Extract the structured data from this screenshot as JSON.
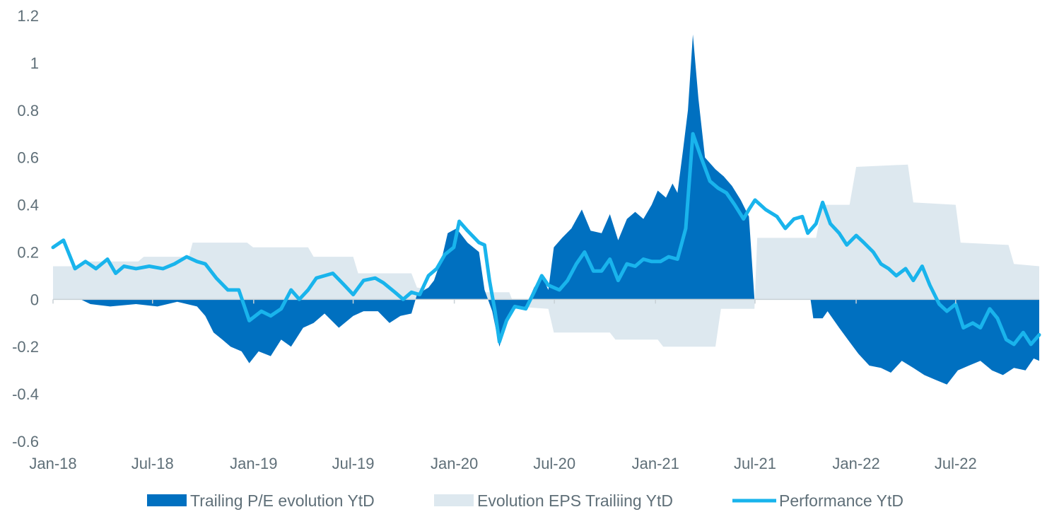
{
  "chart_data": {
    "type": "area",
    "title": "",
    "xlabel": "",
    "ylabel": "",
    "ylim": [
      -0.6,
      1.2
    ],
    "yticks": [
      "1.2",
      "1",
      "0.8",
      "0.6",
      "0.4",
      "0.2",
      "0",
      "-0.2",
      "-0.4",
      "-0.6"
    ],
    "xlim": [
      "2018-01-01",
      "2022-11-30"
    ],
    "xticks": [
      "Jan-18",
      "Jul-18",
      "Jan-19",
      "Jul-19",
      "Jan-20",
      "Jul-20",
      "Jan-21",
      "Jul-21",
      "Jan-22",
      "Jul-22"
    ],
    "grid": false,
    "legend_position": "bottom",
    "colors": {
      "pe": "#0070c0",
      "eps": "#dde8ef",
      "perf": "#19b4ec",
      "axis": "#c8d1d6",
      "text": "#5f6f78"
    },
    "series": [
      {
        "name": "Evolution EPS Trailiing YtD",
        "kind": "area",
        "points": [
          [
            "2018-01-01",
            0.14
          ],
          [
            "2018-02-20",
            0.14
          ],
          [
            "2018-03-01",
            0.16
          ],
          [
            "2018-06-05",
            0.16
          ],
          [
            "2018-06-15",
            0.18
          ],
          [
            "2018-09-05",
            0.18
          ],
          [
            "2018-09-12",
            0.24
          ],
          [
            "2018-12-20",
            0.24
          ],
          [
            "2018-12-31",
            0.22
          ],
          [
            "2019-04-10",
            0.22
          ],
          [
            "2019-04-20",
            0.18
          ],
          [
            "2019-07-01",
            0.18
          ],
          [
            "2019-07-10",
            0.11
          ],
          [
            "2019-10-15",
            0.11
          ],
          [
            "2019-10-25",
            0.05
          ],
          [
            "2019-12-31",
            0.03
          ],
          [
            "2020-01-05",
            0.03
          ],
          [
            "2020-04-10",
            0.03
          ],
          [
            "2020-04-20",
            -0.03
          ],
          [
            "2020-06-20",
            -0.04
          ],
          [
            "2020-06-30",
            -0.14
          ],
          [
            "2020-10-10",
            -0.14
          ],
          [
            "2020-10-20",
            -0.17
          ],
          [
            "2021-01-05",
            -0.17
          ],
          [
            "2021-01-15",
            -0.2
          ],
          [
            "2021-04-20",
            -0.2
          ],
          [
            "2021-04-30",
            -0.04
          ],
          [
            "2021-06-30",
            -0.04
          ],
          [
            "2021-07-05",
            0.26
          ],
          [
            "2021-10-20",
            0.26
          ],
          [
            "2021-11-01",
            0.4
          ],
          [
            "2021-12-20",
            0.4
          ],
          [
            "2022-01-01",
            0.56
          ],
          [
            "2022-04-05",
            0.57
          ],
          [
            "2022-04-15",
            0.41
          ],
          [
            "2022-07-01",
            0.4
          ],
          [
            "2022-07-10",
            0.24
          ],
          [
            "2022-10-05",
            0.23
          ],
          [
            "2022-10-15",
            0.15
          ],
          [
            "2022-11-30",
            0.14
          ]
        ]
      },
      {
        "name": "Trailing P/E evolution YtD",
        "kind": "area",
        "points": [
          [
            "2018-01-01",
            0.0
          ],
          [
            "2018-02-20",
            0.0
          ],
          [
            "2018-03-10",
            -0.02
          ],
          [
            "2018-04-15",
            -0.03
          ],
          [
            "2018-06-01",
            -0.02
          ],
          [
            "2018-07-10",
            -0.03
          ],
          [
            "2018-08-15",
            -0.01
          ],
          [
            "2018-09-20",
            -0.03
          ],
          [
            "2018-10-05",
            -0.07
          ],
          [
            "2018-10-20",
            -0.14
          ],
          [
            "2018-11-05",
            -0.17
          ],
          [
            "2018-11-20",
            -0.2
          ],
          [
            "2018-12-10",
            -0.22
          ],
          [
            "2018-12-24",
            -0.27
          ],
          [
            "2019-01-10",
            -0.22
          ],
          [
            "2019-02-01",
            -0.24
          ],
          [
            "2019-02-20",
            -0.17
          ],
          [
            "2019-03-10",
            -0.2
          ],
          [
            "2019-04-01",
            -0.12
          ],
          [
            "2019-04-20",
            -0.1
          ],
          [
            "2019-05-10",
            -0.06
          ],
          [
            "2019-06-05",
            -0.12
          ],
          [
            "2019-07-01",
            -0.07
          ],
          [
            "2019-07-20",
            -0.05
          ],
          [
            "2019-08-15",
            -0.05
          ],
          [
            "2019-09-05",
            -0.1
          ],
          [
            "2019-09-25",
            -0.07
          ],
          [
            "2019-10-15",
            -0.06
          ],
          [
            "2019-10-25",
            0.02
          ],
          [
            "2019-11-15",
            0.05
          ],
          [
            "2019-11-25",
            0.08
          ],
          [
            "2019-12-10",
            0.18
          ],
          [
            "2019-12-20",
            0.28
          ],
          [
            "2020-01-05",
            0.3
          ],
          [
            "2020-01-25",
            0.24
          ],
          [
            "2020-02-15",
            0.2
          ],
          [
            "2020-02-25",
            0.04
          ],
          [
            "2020-03-10",
            -0.05
          ],
          [
            "2020-03-23",
            -0.2
          ],
          [
            "2020-04-05",
            -0.1
          ],
          [
            "2020-04-20",
            -0.04
          ],
          [
            "2020-05-10",
            -0.03
          ],
          [
            "2020-05-25",
            0.05
          ],
          [
            "2020-06-08",
            0.1
          ],
          [
            "2020-06-20",
            0.04
          ],
          [
            "2020-06-30",
            0.22
          ],
          [
            "2020-07-15",
            0.26
          ],
          [
            "2020-08-01",
            0.3
          ],
          [
            "2020-08-20",
            0.38
          ],
          [
            "2020-09-05",
            0.29
          ],
          [
            "2020-09-25",
            0.28
          ],
          [
            "2020-10-10",
            0.36
          ],
          [
            "2020-10-25",
            0.25
          ],
          [
            "2020-11-10",
            0.34
          ],
          [
            "2020-11-25",
            0.37
          ],
          [
            "2020-12-10",
            0.34
          ],
          [
            "2020-12-25",
            0.4
          ],
          [
            "2021-01-05",
            0.46
          ],
          [
            "2021-01-20",
            0.43
          ],
          [
            "2021-02-01",
            0.49
          ],
          [
            "2021-02-10",
            0.45
          ],
          [
            "2021-02-20",
            0.63
          ],
          [
            "2021-03-01",
            0.8
          ],
          [
            "2021-03-10",
            1.12
          ],
          [
            "2021-03-20",
            0.85
          ],
          [
            "2021-04-01",
            0.6
          ],
          [
            "2021-04-20",
            0.55
          ],
          [
            "2021-05-05",
            0.52
          ],
          [
            "2021-05-20",
            0.48
          ],
          [
            "2021-06-05",
            0.42
          ],
          [
            "2021-06-20",
            0.35
          ],
          [
            "2021-06-30",
            0.0
          ],
          [
            "2021-10-10",
            0.0
          ],
          [
            "2021-10-15",
            -0.08
          ],
          [
            "2021-11-01",
            -0.08
          ],
          [
            "2021-11-10",
            -0.05
          ],
          [
            "2021-12-01",
            -0.12
          ],
          [
            "2021-12-20",
            -0.18
          ],
          [
            "2022-01-05",
            -0.23
          ],
          [
            "2022-01-25",
            -0.28
          ],
          [
            "2022-02-15",
            -0.29
          ],
          [
            "2022-03-05",
            -0.31
          ],
          [
            "2022-03-25",
            -0.26
          ],
          [
            "2022-04-15",
            -0.29
          ],
          [
            "2022-05-05",
            -0.32
          ],
          [
            "2022-05-25",
            -0.34
          ],
          [
            "2022-06-15",
            -0.36
          ],
          [
            "2022-07-05",
            -0.3
          ],
          [
            "2022-07-25",
            -0.28
          ],
          [
            "2022-08-15",
            -0.26
          ],
          [
            "2022-09-05",
            -0.3
          ],
          [
            "2022-09-25",
            -0.32
          ],
          [
            "2022-10-15",
            -0.29
          ],
          [
            "2022-11-05",
            -0.3
          ],
          [
            "2022-11-20",
            -0.25
          ],
          [
            "2022-11-30",
            -0.26
          ]
        ]
      },
      {
        "name": "Performance YtD",
        "kind": "line",
        "points": [
          [
            "2018-01-01",
            0.22
          ],
          [
            "2018-01-20",
            0.25
          ],
          [
            "2018-02-10",
            0.13
          ],
          [
            "2018-03-01",
            0.16
          ],
          [
            "2018-03-20",
            0.13
          ],
          [
            "2018-04-10",
            0.17
          ],
          [
            "2018-04-25",
            0.11
          ],
          [
            "2018-05-10",
            0.14
          ],
          [
            "2018-06-01",
            0.13
          ],
          [
            "2018-06-25",
            0.14
          ],
          [
            "2018-07-20",
            0.13
          ],
          [
            "2018-08-10",
            0.15
          ],
          [
            "2018-09-01",
            0.18
          ],
          [
            "2018-09-20",
            0.16
          ],
          [
            "2018-10-05",
            0.15
          ],
          [
            "2018-10-25",
            0.09
          ],
          [
            "2018-11-15",
            0.04
          ],
          [
            "2018-12-05",
            0.04
          ],
          [
            "2018-12-24",
            -0.09
          ],
          [
            "2019-01-15",
            -0.05
          ],
          [
            "2019-02-01",
            -0.07
          ],
          [
            "2019-02-20",
            -0.04
          ],
          [
            "2019-03-10",
            0.04
          ],
          [
            "2019-03-25",
            0.0
          ],
          [
            "2019-04-10",
            0.04
          ],
          [
            "2019-04-25",
            0.09
          ],
          [
            "2019-05-10",
            0.1
          ],
          [
            "2019-05-25",
            0.11
          ],
          [
            "2019-06-15",
            0.06
          ],
          [
            "2019-07-01",
            0.02
          ],
          [
            "2019-07-20",
            0.08
          ],
          [
            "2019-08-10",
            0.09
          ],
          [
            "2019-08-25",
            0.07
          ],
          [
            "2019-09-15",
            0.03
          ],
          [
            "2019-09-30",
            0.0
          ],
          [
            "2019-10-15",
            0.03
          ],
          [
            "2019-10-30",
            0.02
          ],
          [
            "2019-11-15",
            0.1
          ],
          [
            "2019-11-30",
            0.13
          ],
          [
            "2019-12-15",
            0.19
          ],
          [
            "2019-12-31",
            0.22
          ],
          [
            "2020-01-10",
            0.33
          ],
          [
            "2020-01-25",
            0.29
          ],
          [
            "2020-02-15",
            0.24
          ],
          [
            "2020-02-25",
            0.23
          ],
          [
            "2020-03-05",
            0.08
          ],
          [
            "2020-03-15",
            -0.05
          ],
          [
            "2020-03-23",
            -0.18
          ],
          [
            "2020-04-05",
            -0.09
          ],
          [
            "2020-04-20",
            -0.03
          ],
          [
            "2020-05-10",
            -0.04
          ],
          [
            "2020-05-25",
            0.03
          ],
          [
            "2020-06-08",
            0.1
          ],
          [
            "2020-06-20",
            0.06
          ],
          [
            "2020-07-10",
            0.04
          ],
          [
            "2020-07-25",
            0.08
          ],
          [
            "2020-08-10",
            0.15
          ],
          [
            "2020-08-25",
            0.2
          ],
          [
            "2020-09-10",
            0.12
          ],
          [
            "2020-09-25",
            0.12
          ],
          [
            "2020-10-10",
            0.17
          ],
          [
            "2020-10-25",
            0.08
          ],
          [
            "2020-11-10",
            0.15
          ],
          [
            "2020-11-25",
            0.14
          ],
          [
            "2020-12-10",
            0.17
          ],
          [
            "2020-12-25",
            0.16
          ],
          [
            "2021-01-10",
            0.16
          ],
          [
            "2021-01-25",
            0.18
          ],
          [
            "2021-02-10",
            0.17
          ],
          [
            "2021-02-25",
            0.3
          ],
          [
            "2021-03-10",
            0.7
          ],
          [
            "2021-03-25",
            0.6
          ],
          [
            "2021-04-10",
            0.5
          ],
          [
            "2021-04-25",
            0.47
          ],
          [
            "2021-05-10",
            0.45
          ],
          [
            "2021-05-25",
            0.4
          ],
          [
            "2021-06-10",
            0.34
          ],
          [
            "2021-06-20",
            0.38
          ],
          [
            "2021-07-01",
            0.42
          ],
          [
            "2021-07-20",
            0.38
          ],
          [
            "2021-08-10",
            0.35
          ],
          [
            "2021-08-25",
            0.3
          ],
          [
            "2021-09-10",
            0.34
          ],
          [
            "2021-09-25",
            0.35
          ],
          [
            "2021-10-05",
            0.28
          ],
          [
            "2021-10-20",
            0.32
          ],
          [
            "2021-11-01",
            0.41
          ],
          [
            "2021-11-15",
            0.32
          ],
          [
            "2021-12-01",
            0.28
          ],
          [
            "2021-12-15",
            0.23
          ],
          [
            "2022-01-01",
            0.27
          ],
          [
            "2022-01-15",
            0.24
          ],
          [
            "2022-02-01",
            0.2
          ],
          [
            "2022-02-15",
            0.15
          ],
          [
            "2022-03-01",
            0.13
          ],
          [
            "2022-03-15",
            0.1
          ],
          [
            "2022-04-01",
            0.13
          ],
          [
            "2022-04-15",
            0.08
          ],
          [
            "2022-05-01",
            0.14
          ],
          [
            "2022-05-15",
            0.06
          ],
          [
            "2022-06-01",
            -0.02
          ],
          [
            "2022-06-15",
            -0.05
          ],
          [
            "2022-07-01",
            -0.02
          ],
          [
            "2022-07-15",
            -0.12
          ],
          [
            "2022-08-01",
            -0.1
          ],
          [
            "2022-08-15",
            -0.12
          ],
          [
            "2022-09-01",
            -0.04
          ],
          [
            "2022-09-15",
            -0.08
          ],
          [
            "2022-10-01",
            -0.17
          ],
          [
            "2022-10-15",
            -0.19
          ],
          [
            "2022-11-01",
            -0.14
          ],
          [
            "2022-11-15",
            -0.19
          ],
          [
            "2022-11-30",
            -0.15
          ]
        ]
      }
    ]
  }
}
